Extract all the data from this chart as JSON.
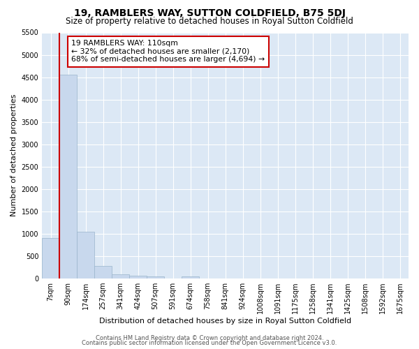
{
  "title": "19, RAMBLERS WAY, SUTTON COLDFIELD, B75 5DJ",
  "subtitle": "Size of property relative to detached houses in Royal Sutton Coldfield",
  "xlabel": "Distribution of detached houses by size in Royal Sutton Coldfield",
  "ylabel": "Number of detached properties",
  "bar_labels": [
    "7sqm",
    "90sqm",
    "174sqm",
    "257sqm",
    "341sqm",
    "424sqm",
    "507sqm",
    "591sqm",
    "674sqm",
    "758sqm",
    "841sqm",
    "924sqm",
    "1008sqm",
    "1091sqm",
    "1175sqm",
    "1258sqm",
    "1341sqm",
    "1425sqm",
    "1508sqm",
    "1592sqm",
    "1675sqm"
  ],
  "bar_values": [
    900,
    4550,
    1050,
    280,
    90,
    65,
    55,
    0,
    45,
    0,
    0,
    0,
    0,
    0,
    0,
    0,
    0,
    0,
    0,
    0,
    0
  ],
  "bar_color": "#c8d8ed",
  "bar_edge_color": "#9ab4cc",
  "property_line_x": 0.5,
  "property_line_color": "#cc0000",
  "annotation_text": "19 RAMBLERS WAY: 110sqm\n← 32% of detached houses are smaller (2,170)\n68% of semi-detached houses are larger (4,694) →",
  "annotation_box_color": "#ffffff",
  "annotation_box_edge_color": "#cc0000",
  "ylim": [
    0,
    5500
  ],
  "yticks": [
    0,
    500,
    1000,
    1500,
    2000,
    2500,
    3000,
    3500,
    4000,
    4500,
    5000,
    5500
  ],
  "figure_bg": "#ffffff",
  "plot_bg": "#dce8f5",
  "grid_color": "#ffffff",
  "footer_line1": "Contains HM Land Registry data © Crown copyright and database right 2024.",
  "footer_line2": "Contains public sector information licensed under the Open Government Licence v3.0.",
  "title_fontsize": 10,
  "subtitle_fontsize": 8.5,
  "tick_fontsize": 7,
  "ylabel_fontsize": 8,
  "xlabel_fontsize": 8,
  "footer_fontsize": 6
}
